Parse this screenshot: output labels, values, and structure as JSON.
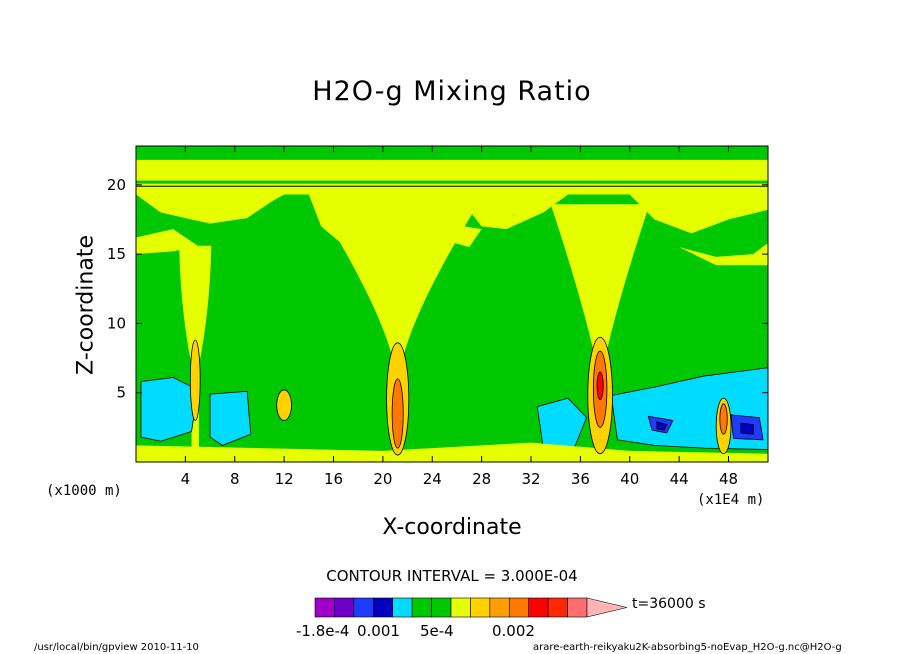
{
  "title": "H2O-g Mixing Ratio",
  "chart_data": {
    "type": "heatmap",
    "title": "H2O-g Mixing Ratio",
    "xlabel": "X-coordinate",
    "ylabel": "Z-coordinate",
    "x_unit_left": "(x1000 m)",
    "x_unit_right": "(x1E4 m)",
    "x_ticks": [
      4,
      8,
      12,
      16,
      20,
      24,
      28,
      32,
      36,
      40,
      44,
      48
    ],
    "y_ticks": [
      5,
      10,
      15,
      20
    ],
    "xlim": [
      0,
      51.2
    ],
    "ylim": [
      0,
      22.8
    ],
    "contour_interval_text": "CONTOUR INTERVAL = 3.000E-04",
    "time_label": "t=36000 s",
    "colorbar_labels": [
      "-1.8e-4",
      "0.001",
      "5e-4",
      "0.002"
    ],
    "colorbar_colors": [
      "#a000c8",
      "#6e00c8",
      "#1e3cff",
      "#0000c0",
      "#00dcff",
      "#00c800",
      "#00c800",
      "#e6ff00",
      "#ffd200",
      "#ffa000",
      "#ff7800",
      "#ff0000",
      "#ff2800",
      "#ff6e6e"
    ],
    "level_colors": {
      "background": "#00c800",
      "high": "#e6ff00",
      "low": "#00dcff",
      "lower": "#1e3cff",
      "lowest": "#0000c0",
      "peak1": "#ffd200",
      "peak2": "#ffa000",
      "peak3": "#ff7800",
      "peak4": "#ff0000",
      "line": "#000000"
    },
    "columns_of_moisture_x": [
      4.8,
      21.2,
      37.6,
      47.6
    ]
  },
  "footer_left": "/usr/local/bin/gpview  2010-11-10",
  "footer_right": "arare-earth-reikyaku2K-absorbing5-noEvap_H2O-g.nc@H2O-g"
}
